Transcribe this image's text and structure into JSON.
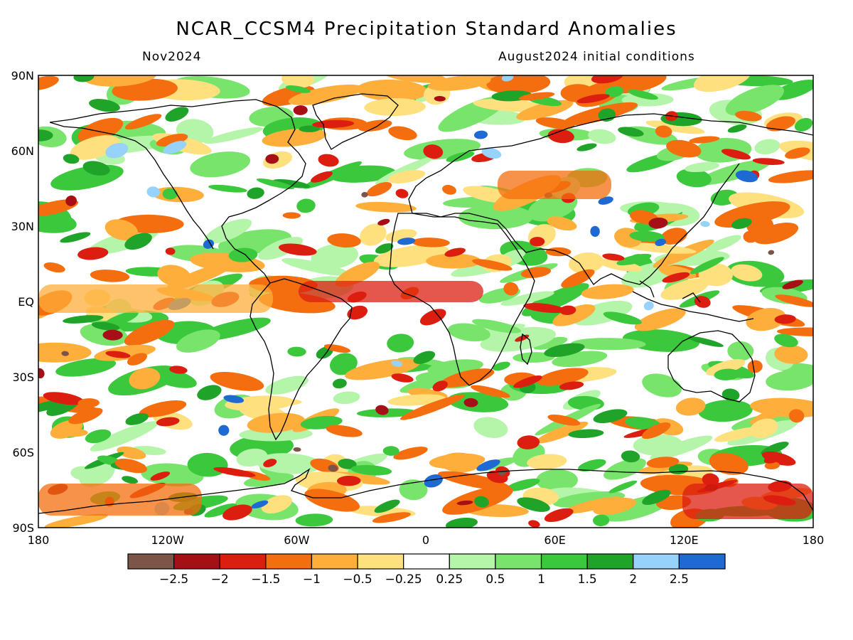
{
  "title": "NCAR_CCSM4 Precipitation Standard Anomalies",
  "valid_month": "Nov2024",
  "initial_conditions": "August2024 initial conditions",
  "lat_labels": [
    "90N",
    "60N",
    "30N",
    "EQ",
    "30S",
    "60S",
    "90S"
  ],
  "lon_labels": [
    "180",
    "120W",
    "60W",
    "0",
    "60E",
    "120E",
    "180"
  ],
  "colorbar": {
    "colors": [
      "#7a5548",
      "#a50f15",
      "#dc1e10",
      "#f46d0e",
      "#fdae3b",
      "#ffe07f",
      "#ffffff",
      "#b5f5aa",
      "#78e46c",
      "#3cc83c",
      "#1fa328",
      "#96d2fa",
      "#1f6ad2"
    ],
    "labels": [
      "−2.5",
      "−2",
      "−1.5",
      "−1",
      "−0.5",
      "−0.25",
      "0.25",
      "0.5",
      "1",
      "1.5",
      "2",
      "2.5"
    ]
  },
  "map_colors": {
    "land_outline": "#000000",
    "frame": "#000000"
  }
}
